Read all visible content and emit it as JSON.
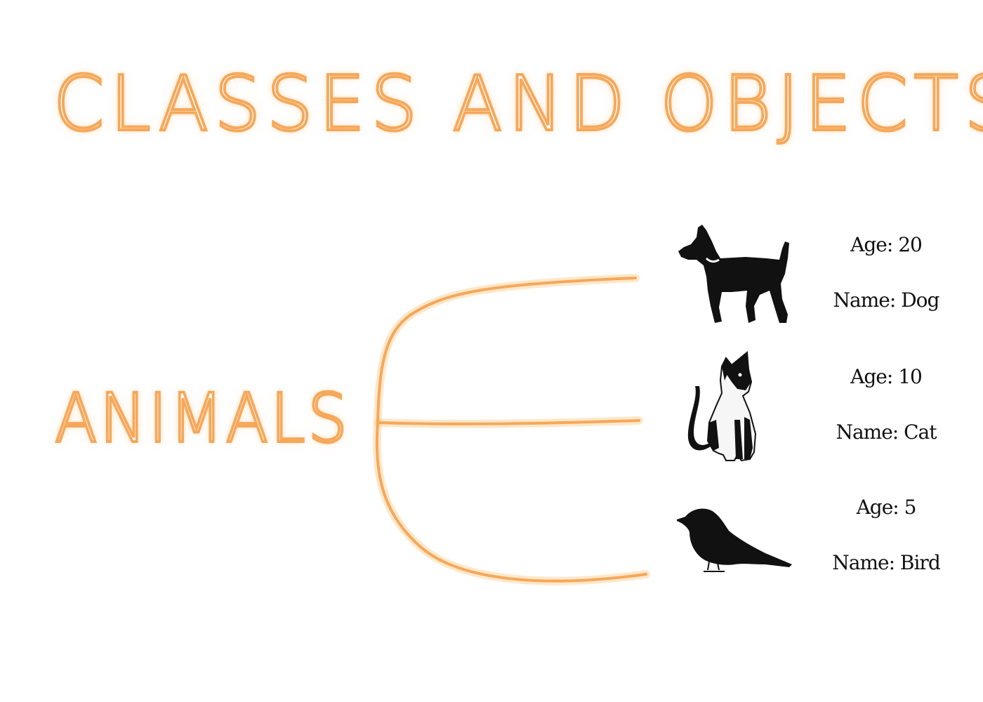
{
  "title": "CLASSES AND OBJECTS",
  "root": "ANIMALS",
  "accent_color": "#f5a85a",
  "objects": [
    {
      "icon": "dog-icon",
      "age": "Age: 20",
      "name": "Name: Dog"
    },
    {
      "icon": "cat-icon",
      "age": "Age: 10",
      "name": "Name: Cat"
    },
    {
      "icon": "bird-icon",
      "age": "Age: 5",
      "name": "Name: Bird"
    }
  ]
}
